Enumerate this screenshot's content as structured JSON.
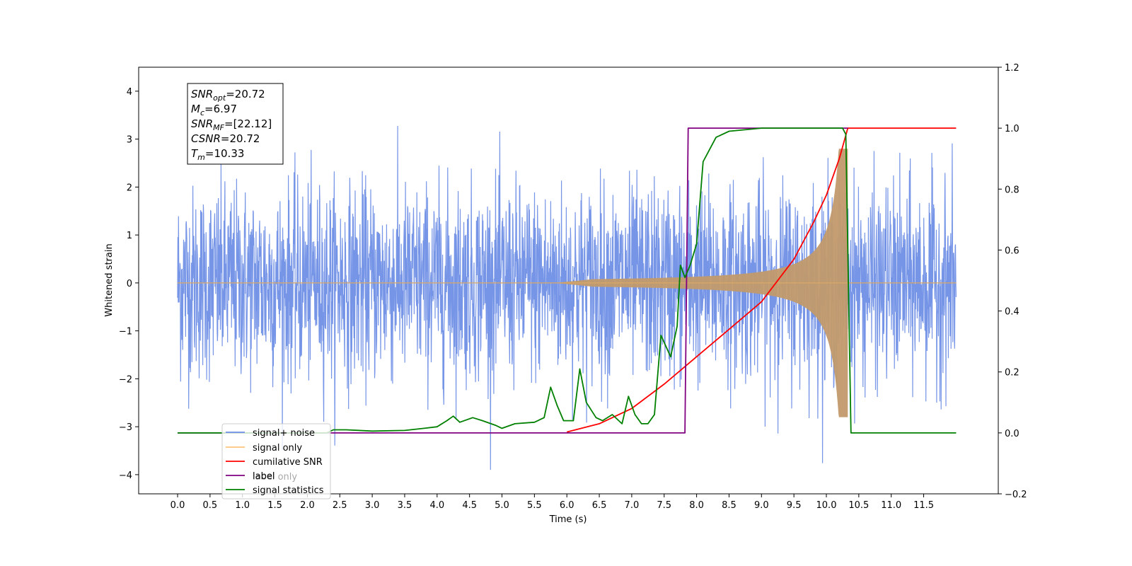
{
  "chart_data": {
    "type": "line",
    "xlabel": "Time (s)",
    "ylabel": "Whitened strain",
    "xlim": [
      -0.6,
      12.65
    ],
    "ylim_left": [
      -4.4,
      4.5
    ],
    "ylim_right": [
      -0.2,
      1.2
    ],
    "x_ticks": [
      "0.0",
      "0.5",
      "1.0",
      "1.5",
      "2.0",
      "2.5",
      "3.0",
      "3.5",
      "4.0",
      "4.5",
      "5.0",
      "5.5",
      "6.0",
      "6.5",
      "7.0",
      "7.5",
      "8.0",
      "8.5",
      "9.0",
      "9.5",
      "10.0",
      "10.5",
      "11.0",
      "11.5"
    ],
    "y_ticks_left": [
      "4",
      "3",
      "2",
      "1",
      "0",
      "−1",
      "−2",
      "−3",
      "−4"
    ],
    "y_ticks_right": [
      "1.2",
      "1.0",
      "0.8",
      "0.6",
      "0.4",
      "0.2",
      "0.0",
      "−0.2"
    ],
    "grid": false,
    "legend_position": "lower-left",
    "annotation": [
      {
        "main": "SNR",
        "sub": "opt",
        "value": "=20.72"
      },
      {
        "main": "M",
        "sub": "c",
        "value": "=6.97"
      },
      {
        "main": "SNR",
        "sub": "MF",
        "value": "=[22.12]"
      },
      {
        "main": "CSNR",
        "sub": "",
        "value": "=20.72"
      },
      {
        "main": "T",
        "sub": "m",
        "value": "=10.33"
      }
    ],
    "series": [
      {
        "name": "signal+ noise",
        "axis": "left",
        "color": "#6f8fe6",
        "noise_sigma": 1.0,
        "t_end": 12.0
      },
      {
        "name": "signal only",
        "axis": "left",
        "color": "#ffb347",
        "chirp_start": 5.8,
        "merger": 10.33,
        "peak_amplitude": 2.8
      },
      {
        "name": "cumilative SNR",
        "axis": "right",
        "color": "#ff0000",
        "points": [
          [
            6.0,
            0.003
          ],
          [
            6.5,
            0.03
          ],
          [
            7.0,
            0.08
          ],
          [
            7.5,
            0.16
          ],
          [
            8.0,
            0.25
          ],
          [
            8.5,
            0.34
          ],
          [
            9.0,
            0.43
          ],
          [
            9.5,
            0.57
          ],
          [
            9.8,
            0.69
          ],
          [
            10.0,
            0.78
          ],
          [
            10.2,
            0.9
          ],
          [
            10.33,
            1.0
          ],
          [
            12.0,
            1.0
          ]
        ]
      },
      {
        "name": "label",
        "axis": "right",
        "color": "#800080",
        "points": [
          [
            0.0,
            0.0
          ],
          [
            7.82,
            0.0
          ],
          [
            7.87,
            1.0
          ],
          [
            10.33,
            1.0
          ],
          [
            10.33,
            1.0
          ]
        ]
      },
      {
        "name": "label only",
        "hidden": true
      },
      {
        "name": "signal statistics",
        "axis": "right",
        "color": "#008000",
        "points": [
          [
            0.0,
            0.0
          ],
          [
            2.3,
            0.0
          ],
          [
            2.4,
            0.01
          ],
          [
            2.6,
            0.01
          ],
          [
            3.0,
            0.006
          ],
          [
            3.5,
            0.008
          ],
          [
            3.8,
            0.015
          ],
          [
            4.0,
            0.02
          ],
          [
            4.15,
            0.04
          ],
          [
            4.25,
            0.055
          ],
          [
            4.35,
            0.035
          ],
          [
            4.55,
            0.05
          ],
          [
            4.7,
            0.04
          ],
          [
            4.9,
            0.025
          ],
          [
            5.0,
            0.015
          ],
          [
            5.2,
            0.03
          ],
          [
            5.5,
            0.035
          ],
          [
            5.65,
            0.05
          ],
          [
            5.75,
            0.15
          ],
          [
            5.85,
            0.09
          ],
          [
            5.95,
            0.04
          ],
          [
            6.1,
            0.04
          ],
          [
            6.2,
            0.21
          ],
          [
            6.3,
            0.1
          ],
          [
            6.45,
            0.05
          ],
          [
            6.55,
            0.04
          ],
          [
            6.7,
            0.06
          ],
          [
            6.85,
            0.03
          ],
          [
            6.95,
            0.12
          ],
          [
            7.05,
            0.06
          ],
          [
            7.15,
            0.03
          ],
          [
            7.25,
            0.03
          ],
          [
            7.35,
            0.06
          ],
          [
            7.45,
            0.32
          ],
          [
            7.6,
            0.25
          ],
          [
            7.7,
            0.35
          ],
          [
            7.75,
            0.55
          ],
          [
            7.82,
            0.51
          ],
          [
            7.9,
            0.55
          ],
          [
            8.0,
            0.62
          ],
          [
            8.1,
            0.89
          ],
          [
            8.3,
            0.97
          ],
          [
            8.5,
            0.99
          ],
          [
            9.0,
            1.0
          ],
          [
            10.25,
            1.0
          ],
          [
            10.3,
            0.98
          ],
          [
            10.38,
            0.0
          ],
          [
            12.0,
            0.0
          ]
        ]
      }
    ]
  }
}
